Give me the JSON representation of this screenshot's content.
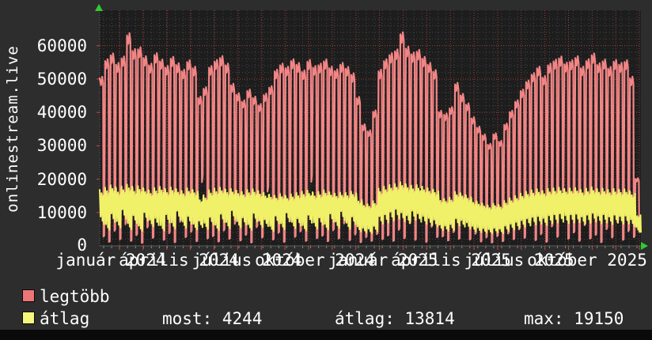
{
  "site_label": "onlinestream.live",
  "legend": {
    "items": [
      {
        "label": "legtöbb",
        "color": "#ee7575"
      },
      {
        "label": "átlag",
        "color": "#f6f67c"
      }
    ]
  },
  "stats": {
    "items": [
      {
        "text": "most: 4244"
      },
      {
        "text": "átlag: 13814"
      },
      {
        "text": "max: 19150"
      }
    ]
  },
  "colors": {
    "background": "#2d2d2d",
    "plot_background": "#1d1d1d",
    "minor_grid": "#474747",
    "major_grid_red": "#9e3b3b",
    "tick_red": "#cc4545",
    "axis_gray": "#5f5f5f",
    "text": "#ffffff",
    "arrow_green": "#2ecc2e",
    "legtobb_line": "#f38585",
    "atlag_line": "#f1f169"
  },
  "chart_data": {
    "type": "line",
    "title": "onlinestream.live",
    "xlabel": "",
    "ylabel": "",
    "grid": true,
    "legend_position": "bottom-left",
    "ylim": [
      0,
      70600
    ],
    "y_ticks": [
      0,
      10000,
      20000,
      30000,
      40000,
      50000,
      60000
    ],
    "y_tick_labels": [
      "0",
      "10000",
      "20000",
      "30000",
      "40000",
      "50000",
      "60000"
    ],
    "x_tick_labels": [
      "január 2024",
      "április 2024",
      "július 2024",
      "október 2024",
      "január 2025",
      "április 2025",
      "július 2025",
      "október 2025"
    ],
    "x_span_weeks": 99,
    "summary": {
      "most": 4244,
      "atlag": 13814,
      "max": 19150
    },
    "series": [
      {
        "name": "legtöbb",
        "color": "#f38585",
        "weekly_high": [
          50200,
          55400,
          57100,
          54300,
          56200,
          63100,
          58400,
          58900,
          56300,
          54100,
          57200,
          55300,
          53400,
          56100,
          54200,
          52300,
          55100,
          53200,
          44300,
          47100,
          53400,
          55200,
          56300,
          54100,
          48100,
          45300,
          43200,
          46400,
          44300,
          42100,
          45200,
          47400,
          52300,
          54100,
          53200,
          55400,
          54300,
          52100,
          55200,
          53400,
          54100,
          55300,
          53200,
          52400,
          54300,
          53100,
          51200,
          44200,
          36100,
          34300,
          40200,
          52300,
          55400,
          57200,
          58300,
          63400,
          59100,
          57400,
          58200,
          56100,
          54300,
          52200,
          40100,
          39300,
          41200,
          48400,
          45100,
          42300,
          38200,
          35400,
          33100,
          30300,
          33400,
          31200,
          36300,
          40100,
          43200,
          46400,
          49100,
          51300,
          53200,
          50400,
          54100,
          55300,
          56200,
          54400,
          55100,
          56300,
          53200,
          55400,
          57100,
          54200,
          55300,
          53100,
          55200,
          54300,
          55100,
          50200,
          20100
        ],
        "weekly_low": [
          2800,
          1200,
          4500,
          2000,
          6500,
          1500,
          3200,
          900,
          5500,
          2400,
          16200,
          1800,
          3800,
          1100,
          7200,
          2600,
          4200,
          1400,
          19100,
          2200,
          2900,
          1300,
          4600,
          2100,
          6600,
          1600,
          3300,
          1000,
          5600,
          2500,
          16300,
          1900,
          3900,
          1200,
          7300,
          2700,
          4300,
          1500,
          19200,
          2300,
          3000,
          1400,
          4700,
          2200,
          6700,
          1700,
          3400,
          1100,
          2600,
          1500,
          3500,
          2000,
          3100,
          1500,
          4800,
          2300,
          6800,
          1800,
          17500,
          1200,
          5700,
          2600,
          2800,
          1600,
          4100,
          2100,
          6900,
          1900,
          3600,
          1300,
          2500,
          1000,
          2900,
          1400,
          3700,
          2000,
          4900,
          2400,
          7000,
          1700,
          3500,
          1200,
          5800,
          2700,
          16400,
          2100,
          4000,
          1500,
          6200,
          2200,
          3300,
          1100,
          5000,
          2500,
          7100,
          1800,
          4400,
          2600,
          4244
        ]
      },
      {
        "name": "átlag",
        "color": "#f1f169",
        "weekly_high": [
          16800,
          17500,
          18200,
          17100,
          17800,
          18400,
          17300,
          17900,
          17200,
          16600,
          17400,
          17700,
          16900,
          17600,
          17000,
          16500,
          17300,
          16800,
          14600,
          15200,
          16700,
          17200,
          17500,
          16900,
          17100,
          16600,
          16200,
          16800,
          17000,
          16400,
          15800,
          15400,
          15100,
          15600,
          15000,
          15500,
          15900,
          16300,
          16600,
          15800,
          16200,
          16700,
          16100,
          15700,
          16000,
          15900,
          16300,
          14200,
          12800,
          12500,
          13400,
          17200,
          17800,
          18300,
          18600,
          19150,
          18500,
          18100,
          18300,
          17800,
          17300,
          16900,
          14400,
          14100,
          14500,
          16200,
          15800,
          15100,
          13800,
          13200,
          12600,
          12100,
          12700,
          12300,
          13500,
          14300,
          15000,
          15700,
          16300,
          16700,
          17000,
          16500,
          17100,
          17300,
          17500,
          17100,
          17300,
          17400,
          16800,
          17200,
          17600,
          17000,
          17200,
          16800,
          17100,
          16900,
          17000,
          16200,
          9500
        ],
        "weekly_low": [
          6500,
          4800,
          7200,
          5500,
          8100,
          5000,
          6800,
          4500,
          7500,
          5800,
          6200,
          4600,
          7000,
          5200,
          7800,
          5400,
          6600,
          4900,
          5600,
          5100,
          6400,
          4700,
          7100,
          5300,
          7900,
          5500,
          6300,
          4800,
          7300,
          5600,
          5900,
          4400,
          6700,
          5000,
          7400,
          5300,
          6100,
          4600,
          6900,
          5200,
          6300,
          4900,
          7200,
          5400,
          7700,
          5100,
          6500,
          4300,
          4000,
          3800,
          4400,
          6600,
          7000,
          7600,
          8200,
          7400,
          6800,
          7800,
          7200,
          6600,
          6200,
          5800,
          4700,
          4500,
          4800,
          6100,
          5700,
          5200,
          4400,
          4100,
          3900,
          3700,
          4000,
          3800,
          4500,
          4900,
          5300,
          5700,
          6100,
          6400,
          6600,
          6200,
          6800,
          7000,
          7200,
          6800,
          7000,
          7100,
          6500,
          6900,
          7300,
          6700,
          7000,
          6500,
          6900,
          6600,
          6700,
          5900,
          4200
        ]
      }
    ]
  }
}
